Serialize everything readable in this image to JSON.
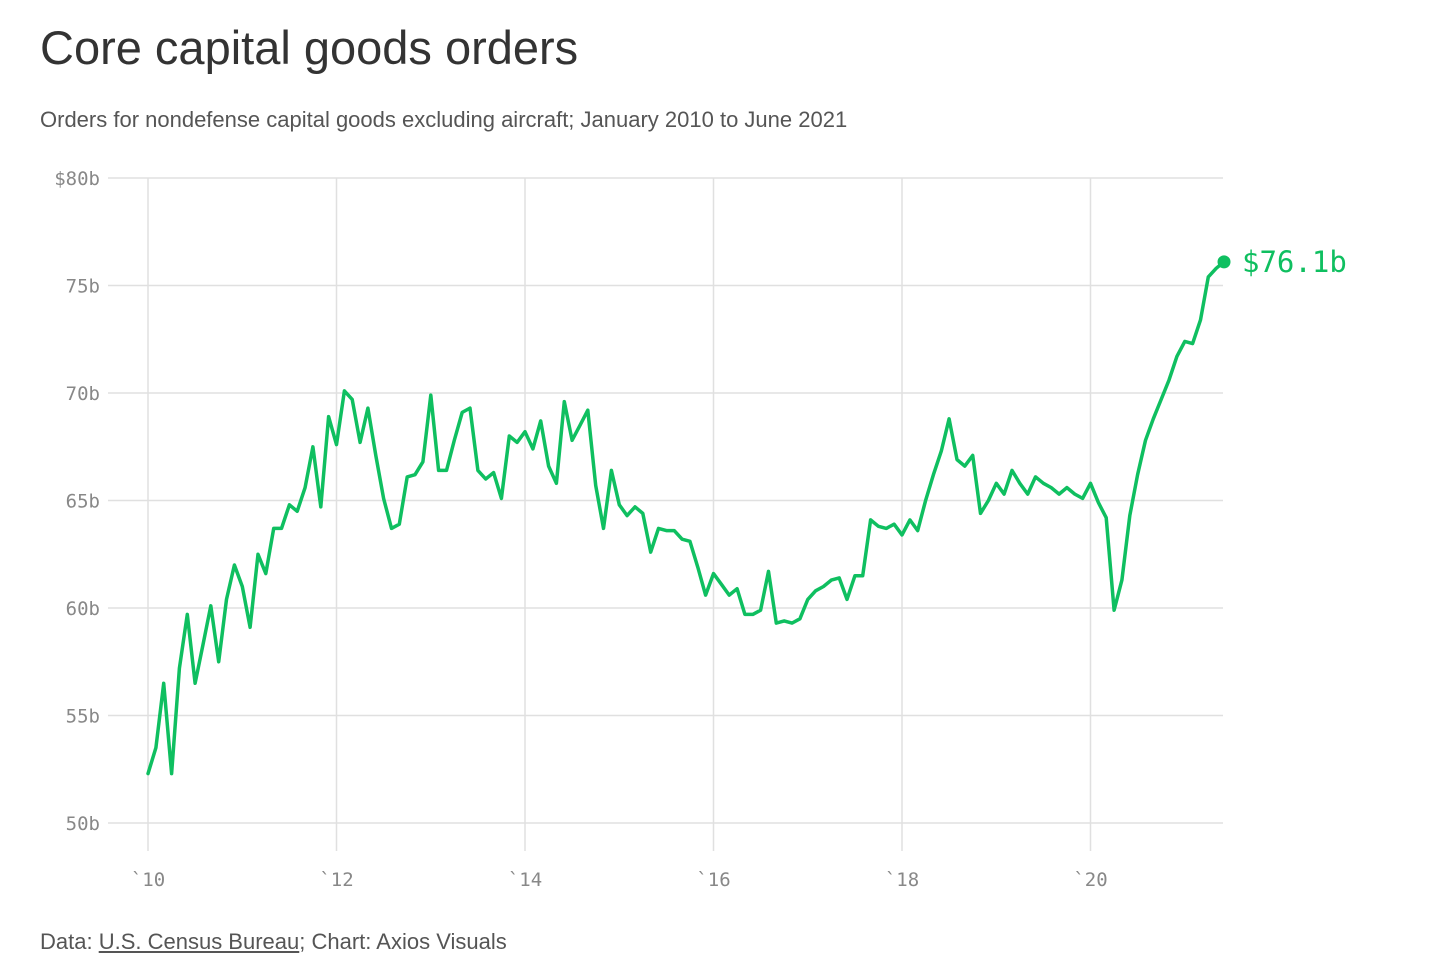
{
  "title": "Core capital goods orders",
  "subtitle": "Orders for nondefense capital goods excluding aircraft; January 2010 to June 2021",
  "footer": {
    "data_prefix": "Data: ",
    "source_link": "U.S. Census Bureau",
    "credit": "; Chart: Axios Visuals"
  },
  "colors": {
    "line": "#0fbf60",
    "grid": "#e0e0e0",
    "tick": "#888888"
  },
  "chart_data": {
    "type": "line",
    "title": "Core capital goods orders",
    "xlabel": "",
    "ylabel": "",
    "ylim": [
      50,
      80
    ],
    "xlim": [
      2010.0,
      2021.417
    ],
    "yticks": [
      {
        "value": 80,
        "label": "$80b"
      },
      {
        "value": 75,
        "label": "75b"
      },
      {
        "value": 70,
        "label": "70b"
      },
      {
        "value": 65,
        "label": "65b"
      },
      {
        "value": 60,
        "label": "60b"
      },
      {
        "value": 55,
        "label": "55b"
      },
      {
        "value": 50,
        "label": "50b"
      }
    ],
    "xticks": [
      {
        "value": 2010,
        "label": "`10"
      },
      {
        "value": 2012,
        "label": "`12"
      },
      {
        "value": 2014,
        "label": "`14"
      },
      {
        "value": 2016,
        "label": "`16"
      },
      {
        "value": 2018,
        "label": "`18"
      },
      {
        "value": 2020,
        "label": "`20"
      }
    ],
    "grid": true,
    "end_label": "$76.1b",
    "series": [
      {
        "x_start": "2010-01",
        "frequency": "monthly",
        "values": [
          52.3,
          53.5,
          56.5,
          52.3,
          57.2,
          59.7,
          56.5,
          58.3,
          60.1,
          57.5,
          60.4,
          62.0,
          61.0,
          59.1,
          62.5,
          61.6,
          63.7,
          63.7,
          64.8,
          64.5,
          65.6,
          67.5,
          64.7,
          68.9,
          67.6,
          70.1,
          69.7,
          67.7,
          69.3,
          67.1,
          65.1,
          63.7,
          63.9,
          66.1,
          66.2,
          66.8,
          69.9,
          66.4,
          66.4,
          67.8,
          69.1,
          69.3,
          66.4,
          66.0,
          66.3,
          65.1,
          68.0,
          67.7,
          68.2,
          67.4,
          68.7,
          66.6,
          65.8,
          69.6,
          67.8,
          68.5,
          69.2,
          65.7,
          63.7,
          66.4,
          64.8,
          64.3,
          64.7,
          64.4,
          62.6,
          63.7,
          63.6,
          63.6,
          63.2,
          63.1,
          61.9,
          60.6,
          61.6,
          61.1,
          60.6,
          60.9,
          59.7,
          59.7,
          59.9,
          61.7,
          59.3,
          59.4,
          59.3,
          59.5,
          60.4,
          60.8,
          61.0,
          61.3,
          61.4,
          60.4,
          61.5,
          61.5,
          64.1,
          63.8,
          63.7,
          63.9,
          63.4,
          64.1,
          63.6,
          65.0,
          66.2,
          67.3,
          68.8,
          66.9,
          66.6,
          67.1,
          64.4,
          65.0,
          65.8,
          65.3,
          66.4,
          65.8,
          65.3,
          66.1,
          65.8,
          65.6,
          65.3,
          65.6,
          65.3,
          65.1,
          65.8,
          64.9,
          64.2,
          59.9,
          61.3,
          64.3,
          66.2,
          67.8,
          68.8,
          69.7,
          70.6,
          71.7,
          72.4,
          72.3,
          73.4,
          75.4,
          75.8,
          76.1
        ]
      }
    ]
  }
}
